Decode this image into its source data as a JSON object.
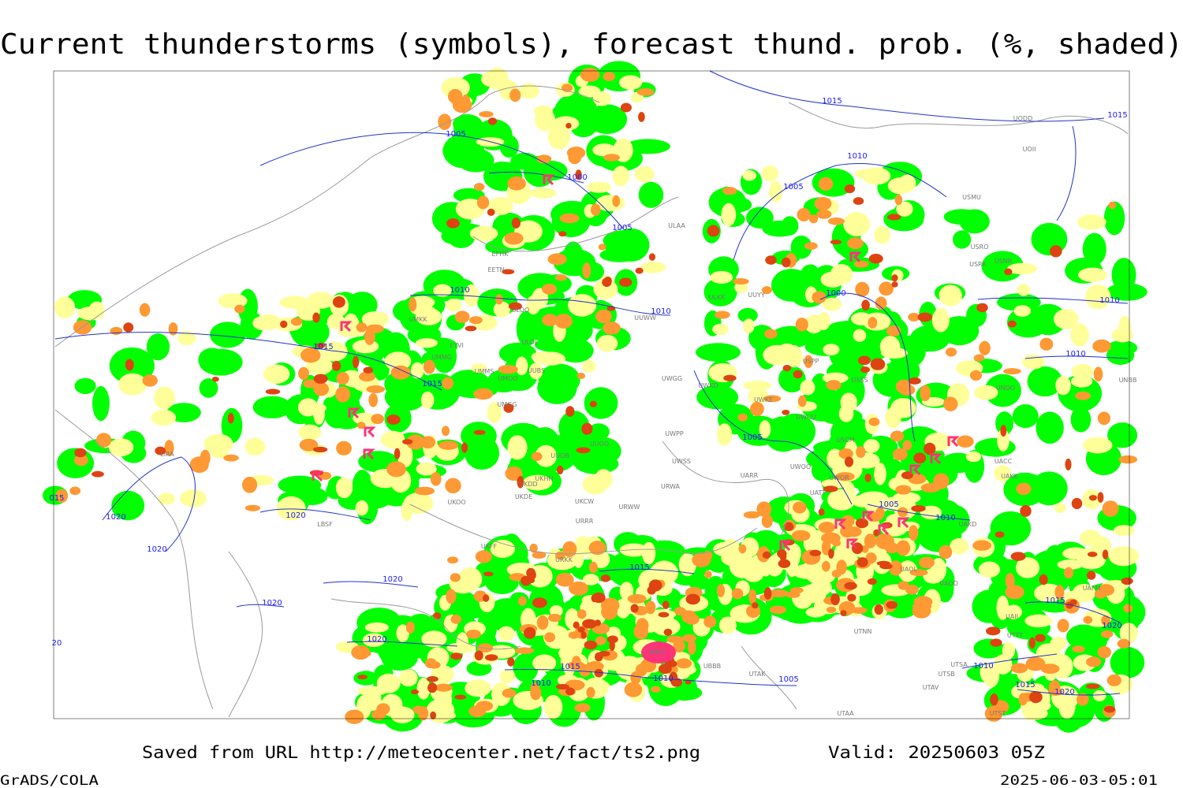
{
  "title": "Current thunderstorms (symbols), forecast thund. prob. (%, shaded)",
  "footer": {
    "source": "Saved from URL http://meteocenter.net/fact/ts2.png",
    "valid": "Valid: 20250603 05Z",
    "software": "GrADS/COLA",
    "timestamp": "2025-06-03-05:01"
  },
  "isobar_labels": [
    "1005",
    "1000",
    "1005",
    "1010",
    "1015",
    "1015",
    "1010",
    "1015",
    "1010",
    "1005",
    "1000",
    "1005",
    "1005",
    "1010",
    "1010",
    "1010",
    "1015",
    "1020",
    "1020",
    "1020",
    "1020",
    "1020",
    "1020",
    "1015",
    "1015",
    "1010",
    "1010",
    "1005",
    "1010",
    "1015",
    "1020",
    "1015",
    "1020",
    "015",
    "20"
  ],
  "stations": [
    "ULAA",
    "EFHK",
    "EETN",
    "ULOO",
    "ULOL",
    "EYVI",
    "UMMG",
    "UMMS",
    "UMOO",
    "UUBS",
    "UMGG",
    "UUOO",
    "UUOB",
    "UKHH",
    "UKDD",
    "UKDE",
    "UKOO",
    "UKCW",
    "URWW",
    "URRR",
    "UKFF",
    "URKK",
    "ULKK",
    "UUYY",
    "UWGG",
    "UWKD",
    "UWKE",
    "UWUU",
    "UWPP",
    "UWSS",
    "UARR",
    "URWA",
    "UWOO",
    "UWOR",
    "UATT",
    "USCM",
    "USSS",
    "USPP",
    "USRO",
    "USRK",
    "USNR",
    "USMU",
    "UODD",
    "UOII",
    "UNOO",
    "UACC",
    "UAKK",
    "UAKD",
    "UAOL",
    "UAOO",
    "UTNN",
    "UBBB",
    "UTAK",
    "UTSB",
    "UTAV",
    "UTSA",
    "UTAA",
    "UTST",
    "LIRA",
    "LBSF",
    "UBBG",
    "UAII",
    "UTTT",
    "UAFM",
    "UNBB",
    "UUWW",
    "UMKK"
  ]
}
